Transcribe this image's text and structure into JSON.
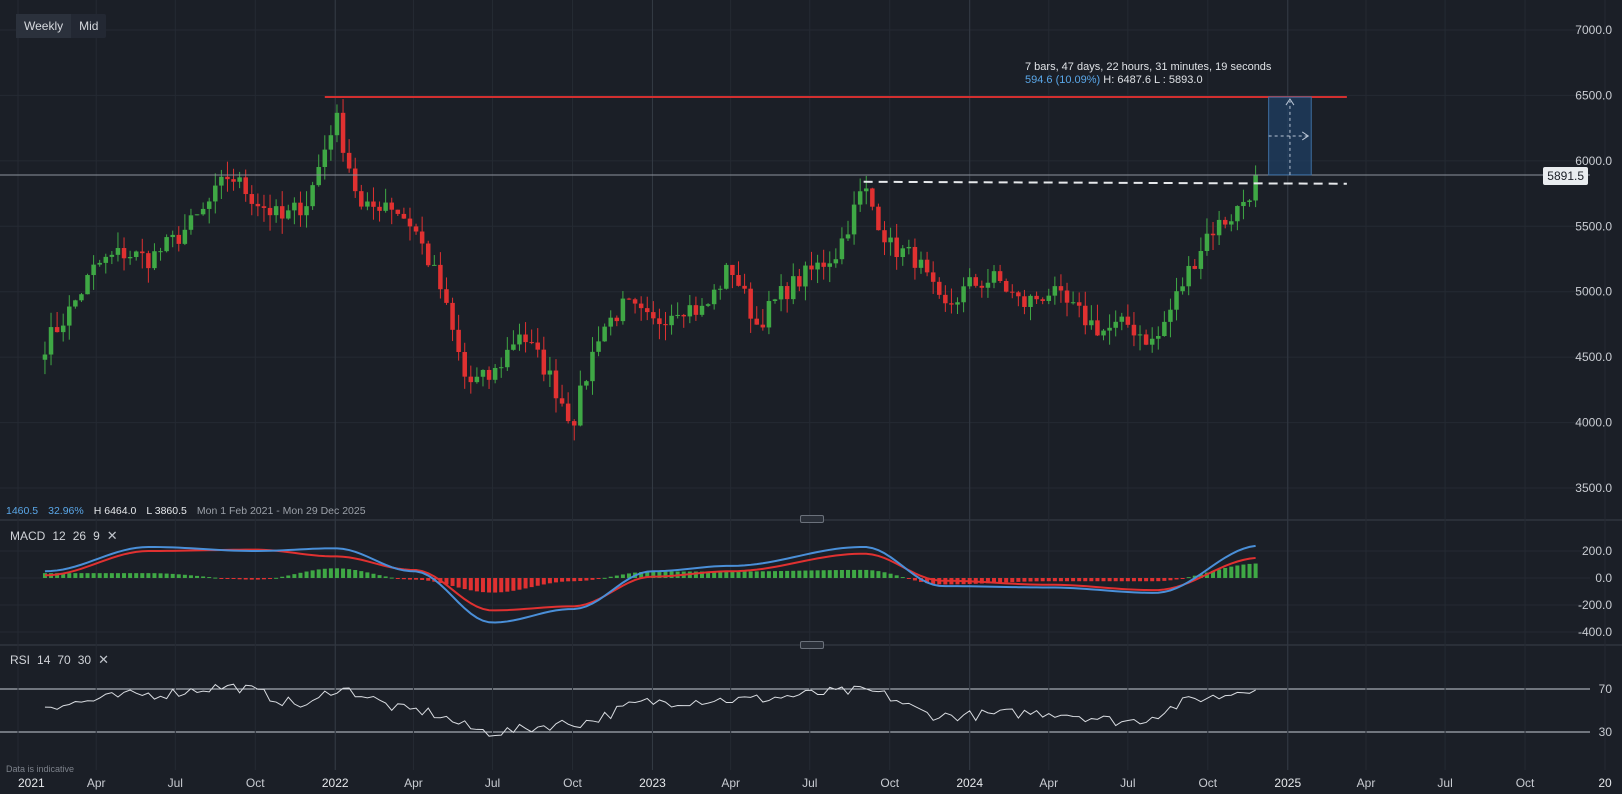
{
  "toolbar": {
    "timeframe_label": "Weekly",
    "price_type_label": "Mid"
  },
  "current_price": "5891.5",
  "measure_tool": {
    "line1": "7 bars, 47 days, 22 hours, 31 minutes, 19 seconds",
    "change": "594.6 (10.09%)",
    "hl": "H: 6487.6 L : 5893.0"
  },
  "summary": {
    "change": "1460.5",
    "change_pct": "32.96%",
    "high": "H 6464.0",
    "low": "L 3860.5",
    "range": "Mon 1 Feb 2021 - Mon 29 Dec 2025"
  },
  "macd": {
    "name": "MACD",
    "p1": "12",
    "p2": "26",
    "p3": "9"
  },
  "rsi": {
    "name": "RSI",
    "p1": "14",
    "p2": "70",
    "p3": "30"
  },
  "disclaimer": "Data is indicative",
  "colors": {
    "background": "#1b1f27",
    "up": "#3fa845",
    "down": "#e03131",
    "macd_line": "#4a8fd8",
    "signal_line": "#e03131",
    "resistance": "#d32f2f",
    "measure_box": "#1f3f63"
  },
  "chart_data": [
    {
      "type": "candlestick",
      "title": "",
      "y_ticks": [
        "7000.0",
        "6500.0",
        "6000.0",
        "5500.0",
        "5000.0",
        "4500.0",
        "4000.0",
        "3500.0"
      ],
      "ylim": [
        3250,
        7180
      ],
      "x_ticks": [
        "2021",
        "Apr",
        "Jul",
        "Oct",
        "2022",
        "Apr",
        "Jul",
        "Oct",
        "2023",
        "Apr",
        "Jul",
        "Oct",
        "2024",
        "Apr",
        "Jul",
        "Oct",
        "2025",
        "Apr",
        "Jul",
        "Oct",
        "20"
      ],
      "x_tick_dates": [
        "2021-01-01",
        "2021-04-01",
        "2021-07-01",
        "2021-10-01",
        "2022-01-01",
        "2022-04-01",
        "2022-07-01",
        "2022-10-01",
        "2023-01-01",
        "2023-04-01",
        "2023-07-01",
        "2023-10-01",
        "2024-01-01",
        "2024-04-01",
        "2024-07-01",
        "2024-10-01",
        "2025-01-01",
        "2025-04-01",
        "2025-07-01",
        "2025-10-01",
        "2026-01-01"
      ],
      "close_path": [
        [
          "2021-02-01",
          4600
        ],
        [
          "2021-03-01",
          4850
        ],
        [
          "2021-04-01",
          5200
        ],
        [
          "2021-05-01",
          5300
        ],
        [
          "2021-06-01",
          5250
        ],
        [
          "2021-07-01",
          5400
        ],
        [
          "2021-08-01",
          5600
        ],
        [
          "2021-09-01",
          5900
        ],
        [
          "2021-10-01",
          5700
        ],
        [
          "2021-11-01",
          5550
        ],
        [
          "2021-12-01",
          5700
        ],
        [
          "2022-01-01",
          6350
        ],
        [
          "2022-02-01",
          5600
        ],
        [
          "2022-03-01",
          5700
        ],
        [
          "2022-04-01",
          5500
        ],
        [
          "2022-05-01",
          5050
        ],
        [
          "2022-06-01",
          4300
        ],
        [
          "2022-07-01",
          4350
        ],
        [
          "2022-08-01",
          4700
        ],
        [
          "2022-09-01",
          4400
        ],
        [
          "2022-10-01",
          4000
        ],
        [
          "2022-11-01",
          4700
        ],
        [
          "2022-12-01",
          4900
        ],
        [
          "2023-01-01",
          4750
        ],
        [
          "2023-02-01",
          4900
        ],
        [
          "2023-03-01",
          4850
        ],
        [
          "2023-04-01",
          5200
        ],
        [
          "2023-05-01",
          4750
        ],
        [
          "2023-06-01",
          5000
        ],
        [
          "2023-07-01",
          5150
        ],
        [
          "2023-08-01",
          5300
        ],
        [
          "2023-09-01",
          5800
        ],
        [
          "2023-10-01",
          5350
        ],
        [
          "2023-11-01",
          5250
        ],
        [
          "2023-12-01",
          4850
        ],
        [
          "2024-01-01",
          5050
        ],
        [
          "2024-02-01",
          5100
        ],
        [
          "2024-03-01",
          4900
        ],
        [
          "2024-04-01",
          5000
        ],
        [
          "2024-05-01",
          4850
        ],
        [
          "2024-06-01",
          4700
        ],
        [
          "2024-07-01",
          4750
        ],
        [
          "2024-08-01",
          4600
        ],
        [
          "2024-09-01",
          5050
        ],
        [
          "2024-10-01",
          5450
        ],
        [
          "2024-11-01",
          5600
        ],
        [
          "2024-12-01",
          5891.5
        ]
      ],
      "resistance_level": 6487.6,
      "support_level": 5830,
      "measure": {
        "bars": 7,
        "change": 594.6,
        "change_pct": 10.09,
        "high": 6487.6,
        "low": 5893.0
      }
    },
    {
      "type": "macd",
      "params": [
        12,
        26,
        9
      ],
      "y_ticks": [
        "200.0",
        "0.0",
        "-200.0",
        "-400.0"
      ],
      "ylim": [
        -450,
        300
      ],
      "macd_path": [
        [
          "2021-02-01",
          50
        ],
        [
          "2021-06-01",
          230
        ],
        [
          "2021-10-01",
          200
        ],
        [
          "2022-01-01",
          220
        ],
        [
          "2022-04-01",
          50
        ],
        [
          "2022-07-01",
          -330
        ],
        [
          "2022-10-01",
          -230
        ],
        [
          "2023-01-01",
          50
        ],
        [
          "2023-04-01",
          90
        ],
        [
          "2023-09-01",
          230
        ],
        [
          "2023-12-01",
          -60
        ],
        [
          "2024-04-01",
          -70
        ],
        [
          "2024-08-01",
          -110
        ],
        [
          "2024-12-01",
          240
        ]
      ],
      "signal_path": [
        [
          "2021-02-01",
          20
        ],
        [
          "2021-06-01",
          200
        ],
        [
          "2021-10-01",
          210
        ],
        [
          "2022-01-01",
          160
        ],
        [
          "2022-04-01",
          60
        ],
        [
          "2022-07-01",
          -240
        ],
        [
          "2022-10-01",
          -210
        ],
        [
          "2023-01-01",
          10
        ],
        [
          "2023-04-01",
          50
        ],
        [
          "2023-09-01",
          180
        ],
        [
          "2023-12-01",
          -20
        ],
        [
          "2024-04-01",
          -50
        ],
        [
          "2024-08-01",
          -90
        ],
        [
          "2024-12-01",
          150
        ]
      ]
    },
    {
      "type": "rsi",
      "params": [
        14,
        70,
        30
      ],
      "y_ticks": [
        "70",
        "30"
      ],
      "ylim": [
        0,
        100
      ],
      "overbought": 70,
      "oversold": 30,
      "rsi_path": [
        [
          "2021-02-01",
          55
        ],
        [
          "2021-06-01",
          65
        ],
        [
          "2021-09-01",
          72
        ],
        [
          "2021-12-01",
          55
        ],
        [
          "2022-01-01",
          70
        ],
        [
          "2022-04-01",
          50
        ],
        [
          "2022-07-01",
          30
        ],
        [
          "2022-10-01",
          38
        ],
        [
          "2023-01-01",
          58
        ],
        [
          "2023-04-01",
          60
        ],
        [
          "2023-09-01",
          68
        ],
        [
          "2023-12-01",
          45
        ],
        [
          "2024-04-01",
          48
        ],
        [
          "2024-07-01",
          40
        ],
        [
          "2024-10-01",
          62
        ],
        [
          "2024-12-01",
          72
        ]
      ]
    }
  ]
}
